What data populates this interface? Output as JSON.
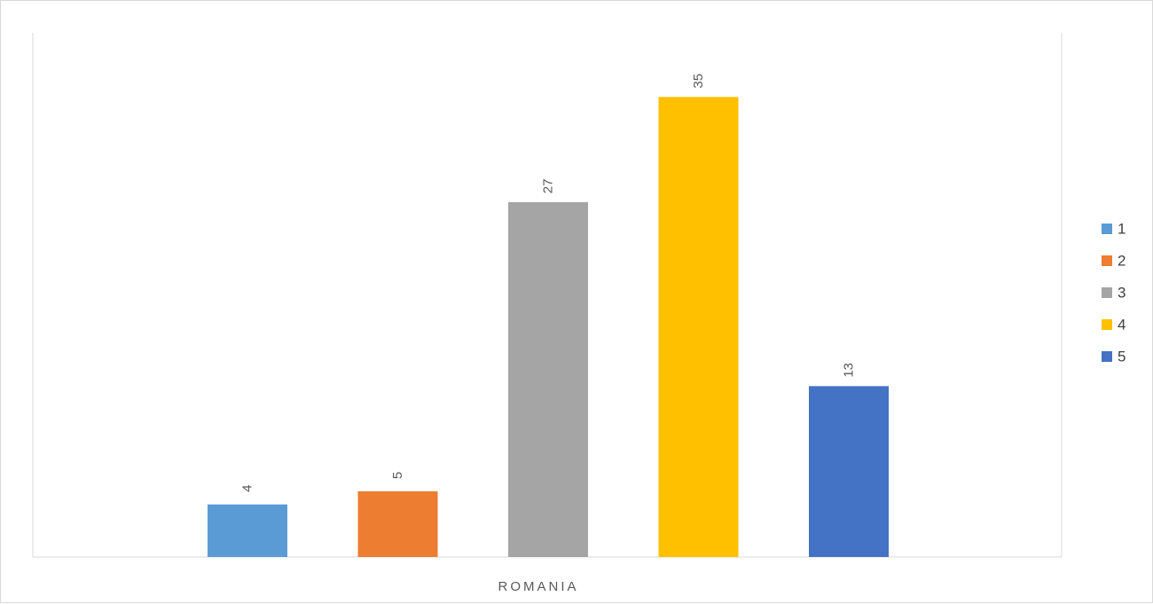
{
  "chart_data": {
    "type": "bar",
    "categories": [
      "ROMANIA"
    ],
    "series": [
      {
        "name": "1",
        "values": [
          4
        ],
        "color": "#5B9BD5"
      },
      {
        "name": "2",
        "values": [
          5
        ],
        "color": "#ED7D31"
      },
      {
        "name": "3",
        "values": [
          27
        ],
        "color": "#A5A5A5"
      },
      {
        "name": "4",
        "values": [
          35
        ],
        "color": "#FFC000"
      },
      {
        "name": "5",
        "values": [
          13
        ],
        "color": "#4472C4"
      }
    ],
    "title": "",
    "xlabel": "",
    "ylabel": "",
    "ylim": [
      0,
      40
    ],
    "grid": false,
    "legend_position": "right",
    "data_labels": true
  }
}
